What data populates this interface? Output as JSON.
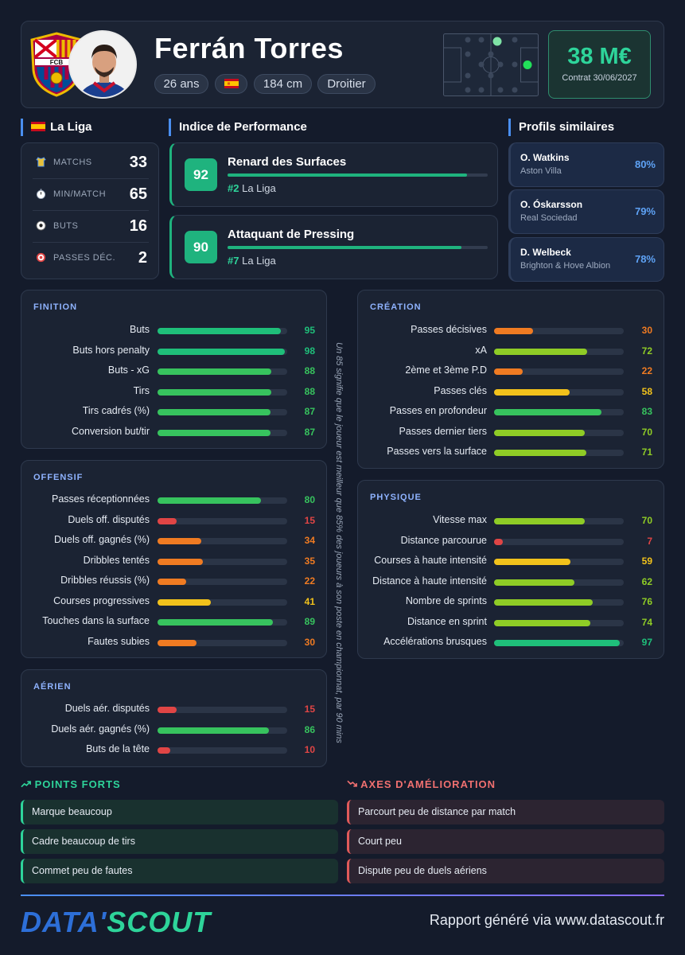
{
  "player": {
    "name": "Ferrán Torres",
    "age": "26 ans",
    "height": "184 cm",
    "foot": "Droitier",
    "club_crest_text": "FCB",
    "market_value": "38 M€",
    "contract": "Contrat 30/06/2027"
  },
  "league": {
    "name": "La Liga",
    "stats": [
      {
        "icon": "jersey-icon",
        "label": "MATCHS",
        "value": "33"
      },
      {
        "icon": "stopwatch-icon",
        "label": "MIN/MATCH",
        "value": "65"
      },
      {
        "icon": "football-icon",
        "label": "BUTS",
        "value": "16"
      },
      {
        "icon": "target-icon",
        "label": "PASSES DÉC.",
        "value": "2"
      }
    ]
  },
  "performance": {
    "heading": "Indice de Performance",
    "items": [
      {
        "score": "92",
        "title": "Renard des Surfaces",
        "rank_hash": "#2",
        "rank_league": "La Liga",
        "level": 0.92
      },
      {
        "score": "90",
        "title": "Attaquant de Pressing",
        "rank_hash": "#7",
        "rank_league": "La Liga",
        "level": 0.9
      }
    ]
  },
  "similar": {
    "heading": "Profils similaires",
    "items": [
      {
        "name": "O. Watkins",
        "club": "Aston Villa",
        "pct": "80%"
      },
      {
        "name": "O. Óskarsson",
        "club": "Real Sociedad",
        "pct": "79%"
      },
      {
        "name": "D. Welbeck",
        "club": "Brighton & Hove Albion",
        "pct": "78%"
      }
    ]
  },
  "panels": {
    "finition": {
      "title": "FINITION",
      "rows": [
        {
          "label": "Buts",
          "value": 95
        },
        {
          "label": "Buts hors penalty",
          "value": 98
        },
        {
          "label": "Buts - xG",
          "value": 88
        },
        {
          "label": "Tirs",
          "value": 88
        },
        {
          "label": "Tirs cadrés (%)",
          "value": 87
        },
        {
          "label": "Conversion but/tir",
          "value": 87
        }
      ]
    },
    "offensif": {
      "title": "OFFENSIF",
      "rows": [
        {
          "label": "Passes réceptionnées",
          "value": 80
        },
        {
          "label": "Duels off. disputés",
          "value": 15
        },
        {
          "label": "Duels off. gagnés (%)",
          "value": 34
        },
        {
          "label": "Dribbles tentés",
          "value": 35
        },
        {
          "label": "Dribbles réussis (%)",
          "value": 22
        },
        {
          "label": "Courses progressives",
          "value": 41
        },
        {
          "label": "Touches dans la surface",
          "value": 89
        },
        {
          "label": "Fautes subies",
          "value": 30
        }
      ]
    },
    "aerien": {
      "title": "AÉRIEN",
      "rows": [
        {
          "label": "Duels aér. disputés",
          "value": 15
        },
        {
          "label": "Duels aér. gagnés (%)",
          "value": 86
        },
        {
          "label": "Buts de la tête",
          "value": 10
        }
      ]
    },
    "creation": {
      "title": "CRÉATION",
      "rows": [
        {
          "label": "Passes décisives",
          "value": 30
        },
        {
          "label": "xA",
          "value": 72
        },
        {
          "label": "2ème et 3ème P.D",
          "value": 22
        },
        {
          "label": "Passes clés",
          "value": 58
        },
        {
          "label": "Passes en profondeur",
          "value": 83
        },
        {
          "label": "Passes dernier tiers",
          "value": 70
        },
        {
          "label": "Passes vers la surface",
          "value": 71
        }
      ]
    },
    "physique": {
      "title": "PHYSIQUE",
      "rows": [
        {
          "label": "Vitesse max",
          "value": 70
        },
        {
          "label": "Distance parcourue",
          "value": 7
        },
        {
          "label": "Courses à haute intensité",
          "value": 59
        },
        {
          "label": "Distance à haute intensité",
          "value": 62
        },
        {
          "label": "Nombre de sprints",
          "value": 76
        },
        {
          "label": "Distance en sprint",
          "value": 74
        },
        {
          "label": "Accélérations brusques",
          "value": 97
        }
      ]
    }
  },
  "note": "Un 85 signifie que le joueur est meilleur que 85% des joueurs à son poste en championnat, par 90 mins",
  "strengths": {
    "title": "POINTS FORTS",
    "items": [
      "Marque beaucoup",
      "Cadre beaucoup de tirs",
      "Commet peu de fautes"
    ]
  },
  "improvements": {
    "title": "AXES D'AMÉLIORATION",
    "items": [
      "Parcourt peu de distance par match",
      "Court peu",
      "Dispute peu de duels aériens"
    ]
  },
  "footer": {
    "logo_left": "DATA'",
    "logo_right": "SCOUT",
    "text": "Rapport généré via www.datascout.fr"
  },
  "colors": {
    "green_high": "#1fbf7a",
    "green": "#37c35e",
    "lime": "#8fcc26",
    "yellow": "#f2c21b",
    "orange": "#f07b22",
    "red": "#e04545",
    "accent_blue": "#4a8ff0"
  }
}
